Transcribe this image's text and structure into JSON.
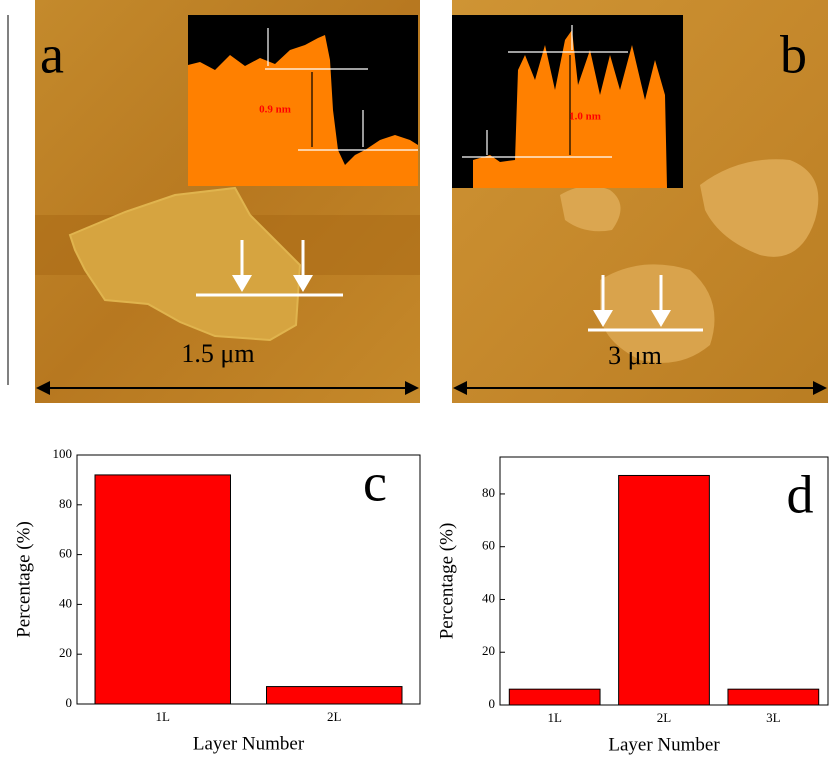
{
  "images": [
    {
      "label": "a",
      "height_label": "0.9 nm",
      "scale_label": "1.5 μm"
    },
    {
      "label": "b",
      "height_label": "1.0 nm",
      "scale_label": "3 μm"
    }
  ],
  "chart_data": [
    {
      "type": "bar",
      "panel_label": "c",
      "categories": [
        "1L",
        "2L"
      ],
      "values": [
        92,
        7
      ],
      "color": "#ff0000",
      "ylim": [
        0,
        100
      ],
      "yticks": [
        0,
        20,
        40,
        60,
        80,
        100
      ],
      "xlabel": "Layer Number",
      "ylabel": "Percentage (%)"
    },
    {
      "type": "bar",
      "panel_label": "d",
      "categories": [
        "1L",
        "2L",
        "3L"
      ],
      "values": [
        6,
        87,
        6
      ],
      "color": "#ff0000",
      "ylim": [
        0,
        94
      ],
      "yticks": [
        0,
        20,
        40,
        60,
        80
      ],
      "xlabel": "Layer Number",
      "ylabel": "Percentage (%)"
    }
  ]
}
